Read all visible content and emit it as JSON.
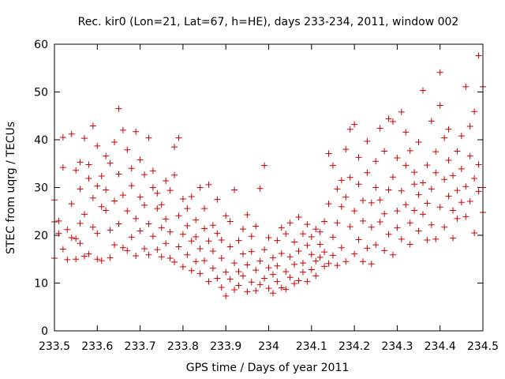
{
  "chart_data": {
    "type": "scatter",
    "title": "Rec. kir0 (Lon=21, Lat=67, h=HE), days 233-234, 2011, window 002",
    "xlabel": "GPS time / Days of year 2011",
    "ylabel": "STEC from uqrg / TECUs",
    "xlim": [
      233.5,
      234.5
    ],
    "ylim": [
      0,
      60
    ],
    "xticks": [
      233.5,
      233.6,
      233.7,
      233.8,
      233.9,
      234.0,
      234.1,
      234.2,
      234.3,
      234.4,
      234.5
    ],
    "xtick_labels": [
      "233.5",
      "233.6",
      "233.7",
      "233.8",
      "233.9",
      "234",
      "234.1",
      "234.2",
      "234.3",
      "234.4",
      "234.5"
    ],
    "yticks": [
      0,
      10,
      20,
      30,
      40,
      50,
      60
    ],
    "ytick_labels": [
      "0",
      "10",
      "20",
      "30",
      "40",
      "50",
      "60"
    ],
    "marker": "+",
    "color": "#cc0000",
    "grid": false,
    "legend": "none",
    "series": [
      {
        "points": [
          [
            233.5,
            15.2
          ],
          [
            233.5,
            22.8
          ],
          [
            233.5,
            27.4
          ],
          [
            233.51,
            23.0
          ],
          [
            233.51,
            20.4
          ],
          [
            233.52,
            40.5
          ],
          [
            233.52,
            34.2
          ],
          [
            233.52,
            17.1
          ],
          [
            233.53,
            14.9
          ],
          [
            233.53,
            21.2
          ],
          [
            233.54,
            19.5
          ],
          [
            233.54,
            26.6
          ],
          [
            233.54,
            41.2
          ],
          [
            233.55,
            33.6
          ],
          [
            233.55,
            19.3
          ],
          [
            233.55,
            15.0
          ],
          [
            233.56,
            29.7
          ],
          [
            233.56,
            35.3
          ],
          [
            233.56,
            22.5
          ],
          [
            233.56,
            18.3
          ],
          [
            233.57,
            15.6
          ],
          [
            233.57,
            40.3
          ],
          [
            233.57,
            24.4
          ],
          [
            233.58,
            31.9
          ],
          [
            233.58,
            34.8
          ],
          [
            233.58,
            16.1
          ],
          [
            233.59,
            42.9
          ],
          [
            233.59,
            27.8
          ],
          [
            233.59,
            21.7
          ],
          [
            233.6,
            15.0
          ],
          [
            233.6,
            30.3
          ],
          [
            233.6,
            38.7
          ],
          [
            233.6,
            20.4
          ],
          [
            233.61,
            26.0
          ],
          [
            233.61,
            32.4
          ],
          [
            233.61,
            14.7
          ],
          [
            233.62,
            25.2
          ],
          [
            233.62,
            29.5
          ],
          [
            233.62,
            36.6
          ],
          [
            233.63,
            21.1
          ],
          [
            233.63,
            15.3
          ],
          [
            233.63,
            35.1
          ],
          [
            233.64,
            39.5
          ],
          [
            233.64,
            27.2
          ],
          [
            233.64,
            18.0
          ],
          [
            233.65,
            46.5
          ],
          [
            233.65,
            32.8
          ],
          [
            233.65,
            22.4
          ],
          [
            233.66,
            17.4
          ],
          [
            233.66,
            28.4
          ],
          [
            233.66,
            42.0
          ],
          [
            233.67,
            37.9
          ],
          [
            233.67,
            25.1
          ],
          [
            233.67,
            16.8
          ],
          [
            233.68,
            34.0
          ],
          [
            233.68,
            19.6
          ],
          [
            233.68,
            30.4
          ],
          [
            233.69,
            41.7
          ],
          [
            233.69,
            23.5
          ],
          [
            233.69,
            15.7
          ],
          [
            233.7,
            28.0
          ],
          [
            233.7,
            35.8
          ],
          [
            233.7,
            20.9
          ],
          [
            233.71,
            17.2
          ],
          [
            233.71,
            32.7
          ],
          [
            233.71,
            26.3
          ],
          [
            233.72,
            40.4
          ],
          [
            233.72,
            22.4
          ],
          [
            233.72,
            15.9
          ],
          [
            233.73,
            30.0
          ],
          [
            233.73,
            19.8
          ],
          [
            233.73,
            33.5
          ],
          [
            233.74,
            25.6
          ],
          [
            233.74,
            17.0
          ],
          [
            233.74,
            28.8
          ],
          [
            233.75,
            21.6
          ],
          [
            233.75,
            15.5
          ],
          [
            233.75,
            26.4
          ],
          [
            233.76,
            31.4
          ],
          [
            233.76,
            18.3
          ],
          [
            233.76,
            23.4
          ],
          [
            233.77,
            29.4
          ],
          [
            233.77,
            15.2
          ],
          [
            233.77,
            20.7
          ],
          [
            233.78,
            32.6
          ],
          [
            233.78,
            38.5
          ],
          [
            233.78,
            14.4
          ],
          [
            233.79,
            24.1
          ],
          [
            233.79,
            17.6
          ],
          [
            233.79,
            40.4
          ],
          [
            233.8,
            27.6
          ],
          [
            233.8,
            20.2
          ],
          [
            233.8,
            13.4
          ],
          [
            233.81,
            25.6
          ],
          [
            233.81,
            15.9
          ],
          [
            233.81,
            22.0
          ],
          [
            233.82,
            18.8
          ],
          [
            233.82,
            12.6
          ],
          [
            233.82,
            28.1
          ],
          [
            233.83,
            23.2
          ],
          [
            233.83,
            14.5
          ],
          [
            233.83,
            19.7
          ],
          [
            233.84,
            30.0
          ],
          [
            233.84,
            12.0
          ],
          [
            233.84,
            17.2
          ],
          [
            233.85,
            21.4
          ],
          [
            233.85,
            14.7
          ],
          [
            233.85,
            25.6
          ],
          [
            233.86,
            10.3
          ],
          [
            233.86,
            18.8
          ],
          [
            233.86,
            30.6
          ],
          [
            233.87,
            13.1
          ],
          [
            233.87,
            22.1
          ],
          [
            233.87,
            16.7
          ],
          [
            233.88,
            11.0
          ],
          [
            233.88,
            20.4
          ],
          [
            233.88,
            27.5
          ],
          [
            233.89,
            9.1
          ],
          [
            233.89,
            15.2
          ],
          [
            233.89,
            19.0
          ],
          [
            233.9,
            12.3
          ],
          [
            233.9,
            7.3
          ],
          [
            233.9,
            24.1
          ],
          [
            233.91,
            17.6
          ],
          [
            233.91,
            10.8
          ],
          [
            233.91,
            22.9
          ],
          [
            233.92,
            8.6
          ],
          [
            233.92,
            14.2
          ],
          [
            233.92,
            29.5
          ],
          [
            233.93,
            12.4
          ],
          [
            233.93,
            18.9
          ],
          [
            233.93,
            9.5
          ],
          [
            233.94,
            16.1
          ],
          [
            233.94,
            11.5
          ],
          [
            233.94,
            21.3
          ],
          [
            233.95,
            8.2
          ],
          [
            233.95,
            13.8
          ],
          [
            233.95,
            24.3
          ],
          [
            233.96,
            10.2
          ],
          [
            233.96,
            16.6
          ],
          [
            233.96,
            19.8
          ],
          [
            233.97,
            12.7
          ],
          [
            233.97,
            8.4
          ],
          [
            233.97,
            21.9
          ],
          [
            233.98,
            14.6
          ],
          [
            233.98,
            29.8
          ],
          [
            233.98,
            9.7
          ],
          [
            233.99,
            17.0
          ],
          [
            233.99,
            34.6
          ],
          [
            233.99,
            11.0
          ],
          [
            234.0,
            13.2
          ],
          [
            234.0,
            8.9
          ],
          [
            234.0,
            19.5
          ],
          [
            234.01,
            11.8
          ],
          [
            234.01,
            7.9
          ],
          [
            234.01,
            15.3
          ],
          [
            234.02,
            18.9
          ],
          [
            234.02,
            10.3
          ],
          [
            234.02,
            13.6
          ],
          [
            234.03,
            9.0
          ],
          [
            234.03,
            21.6
          ],
          [
            234.03,
            16.2
          ],
          [
            234.04,
            12.4
          ],
          [
            234.04,
            20.3
          ],
          [
            234.04,
            8.7
          ],
          [
            234.05,
            15.5
          ],
          [
            234.05,
            22.6
          ],
          [
            234.05,
            11.2
          ],
          [
            234.06,
            18.6
          ],
          [
            234.06,
            9.9
          ],
          [
            234.06,
            13.9
          ],
          [
            234.07,
            23.8
          ],
          [
            234.07,
            16.7
          ],
          [
            234.07,
            10.5
          ],
          [
            234.08,
            20.3
          ],
          [
            234.08,
            14.2
          ],
          [
            234.08,
            12.3
          ],
          [
            234.09,
            17.9
          ],
          [
            234.09,
            22.3
          ],
          [
            234.09,
            10.3
          ],
          [
            234.1,
            16.0
          ],
          [
            234.1,
            19.7
          ],
          [
            234.1,
            12.8
          ],
          [
            234.11,
            21.3
          ],
          [
            234.11,
            14.6
          ],
          [
            234.11,
            11.5
          ],
          [
            234.12,
            18.1
          ],
          [
            234.12,
            15.4
          ],
          [
            234.12,
            20.7
          ],
          [
            234.13,
            13.5
          ],
          [
            234.13,
            16.5
          ],
          [
            234.13,
            22.9
          ],
          [
            234.14,
            14.1
          ],
          [
            234.14,
            26.6
          ],
          [
            234.14,
            37.1
          ],
          [
            234.15,
            19.6
          ],
          [
            234.15,
            15.8
          ],
          [
            234.15,
            34.6
          ],
          [
            234.16,
            29.7
          ],
          [
            234.16,
            13.7
          ],
          [
            234.16,
            22.6
          ],
          [
            234.17,
            31.5
          ],
          [
            234.17,
            17.4
          ],
          [
            234.17,
            26.0
          ],
          [
            234.18,
            14.5
          ],
          [
            234.18,
            28.0
          ],
          [
            234.18,
            38.0
          ],
          [
            234.19,
            21.8
          ],
          [
            234.19,
            42.2
          ],
          [
            234.19,
            32.1
          ],
          [
            234.2,
            16.1
          ],
          [
            234.2,
            25.1
          ],
          [
            234.2,
            43.2
          ],
          [
            234.21,
            19.1
          ],
          [
            234.21,
            30.7
          ],
          [
            234.21,
            36.3
          ],
          [
            234.22,
            14.5
          ],
          [
            234.22,
            23.0
          ],
          [
            234.22,
            27.3
          ],
          [
            234.23,
            17.3
          ],
          [
            234.23,
            33.1
          ],
          [
            234.23,
            39.7
          ],
          [
            234.24,
            21.7
          ],
          [
            234.24,
            14.0
          ],
          [
            234.24,
            26.8
          ],
          [
            234.25,
            30.0
          ],
          [
            234.25,
            18.0
          ],
          [
            234.25,
            35.5
          ],
          [
            234.26,
            22.8
          ],
          [
            234.26,
            42.4
          ],
          [
            234.26,
            27.4
          ],
          [
            234.27,
            16.8
          ],
          [
            234.27,
            37.6
          ],
          [
            234.27,
            24.5
          ],
          [
            234.28,
            44.4
          ],
          [
            234.28,
            20.2
          ],
          [
            234.28,
            29.5
          ],
          [
            234.29,
            32.2
          ],
          [
            234.29,
            15.9
          ],
          [
            234.29,
            43.8
          ],
          [
            234.3,
            25.1
          ],
          [
            234.3,
            36.2
          ],
          [
            234.3,
            21.6
          ],
          [
            234.31,
            45.8
          ],
          [
            234.31,
            29.3
          ],
          [
            234.31,
            19.2
          ],
          [
            234.32,
            34.6
          ],
          [
            234.32,
            26.4
          ],
          [
            234.32,
            41.6
          ],
          [
            234.33,
            22.6
          ],
          [
            234.33,
            37.7
          ],
          [
            234.33,
            18.1
          ],
          [
            234.34,
            30.7
          ],
          [
            234.34,
            25.2
          ],
          [
            234.34,
            33.2
          ],
          [
            234.35,
            20.9
          ],
          [
            234.35,
            28.5
          ],
          [
            234.35,
            39.5
          ],
          [
            234.36,
            24.4
          ],
          [
            234.36,
            50.3
          ],
          [
            234.36,
            31.0
          ],
          [
            234.37,
            19.0
          ],
          [
            234.37,
            34.7
          ],
          [
            234.37,
            26.7
          ],
          [
            234.38,
            43.9
          ],
          [
            234.38,
            22.2
          ],
          [
            234.38,
            29.7
          ],
          [
            234.39,
            37.5
          ],
          [
            234.39,
            19.2
          ],
          [
            234.39,
            33.1
          ],
          [
            234.4,
            54.1
          ],
          [
            234.4,
            25.9
          ],
          [
            234.4,
            47.2
          ],
          [
            234.41,
            31.7
          ],
          [
            234.41,
            40.4
          ],
          [
            234.41,
            21.7
          ],
          [
            234.42,
            35.7
          ],
          [
            234.42,
            28.2
          ],
          [
            234.42,
            42.2
          ],
          [
            234.43,
            25.2
          ],
          [
            234.43,
            19.4
          ],
          [
            234.43,
            32.5
          ],
          [
            234.44,
            37.6
          ],
          [
            234.44,
            23.5
          ],
          [
            234.44,
            29.4
          ],
          [
            234.45,
            33.9
          ],
          [
            234.45,
            26.9
          ],
          [
            234.45,
            40.8
          ],
          [
            234.46,
            51.1
          ],
          [
            234.46,
            30.2
          ],
          [
            234.46,
            23.9
          ],
          [
            234.47,
            36.6
          ],
          [
            234.47,
            42.8
          ],
          [
            234.47,
            27.1
          ],
          [
            234.48,
            20.5
          ],
          [
            234.48,
            45.9
          ],
          [
            234.48,
            31.9
          ],
          [
            234.49,
            57.6
          ],
          [
            234.49,
            34.8
          ],
          [
            234.49,
            29.2
          ],
          [
            234.5,
            51.1
          ],
          [
            234.5,
            24.8
          ],
          [
            234.5,
            30.0
          ]
        ]
      }
    ]
  }
}
